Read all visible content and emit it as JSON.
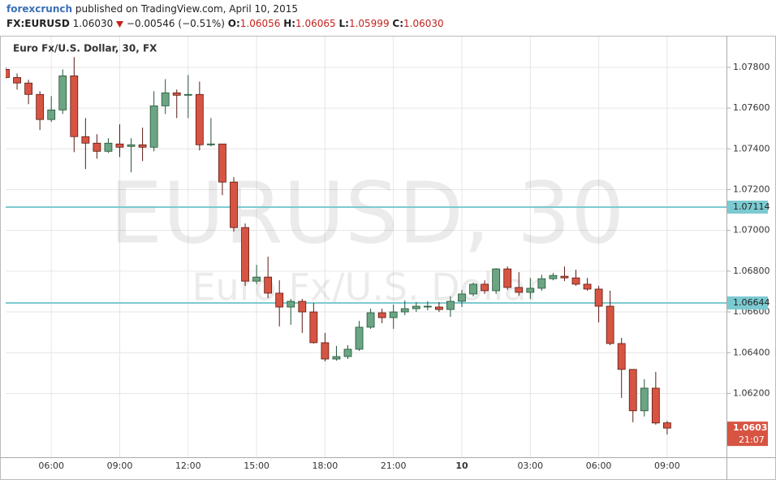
{
  "header": {
    "brand": "forexcrunch",
    "published": "published on TradingView.com, April 10, 2015",
    "symbol": "FX:EURUSD",
    "price": "1.06030",
    "change": "−0.00546 (−0.51%)",
    "ohlc": [
      {
        "label": "O:",
        "value": "1.06056"
      },
      {
        "label": "H:",
        "value": "1.06065"
      },
      {
        "label": "L:",
        "value": "1.05999"
      },
      {
        "label": "C:",
        "value": "1.06030"
      }
    ]
  },
  "chart_data": {
    "type": "candlestick",
    "title": "Euro Fx/U.S. Dollar, 30, FX",
    "watermark": [
      "EURUSD, 30",
      "Euro Fx/U.S. Dollar"
    ],
    "categories": [
      null,
      null,
      null,
      null,
      "06:00",
      null,
      null,
      null,
      null,
      null,
      "09:00",
      null,
      null,
      null,
      null,
      null,
      "12:00",
      null,
      null,
      null,
      null,
      null,
      "15:00",
      null,
      null,
      null,
      null,
      null,
      "18:00",
      null,
      null,
      null,
      null,
      null,
      "21:00",
      null,
      null,
      null,
      null,
      null,
      "10",
      null,
      null,
      null,
      null,
      null,
      "03:00",
      null,
      null,
      null,
      null,
      null,
      "06:00",
      null,
      null,
      null,
      null,
      null,
      "09:00"
    ],
    "open": [
      1.0779,
      1.0775,
      1.07723,
      1.07667,
      1.07544,
      1.07591,
      1.07758,
      1.0746,
      1.07428,
      1.07388,
      1.07424,
      1.07412,
      1.0742,
      1.07408,
      1.07611,
      1.07675,
      1.07663,
      1.07667,
      1.0742,
      1.07424,
      1.07237,
      1.07014,
      1.06751,
      1.06771,
      1.06692,
      1.06624,
      1.06652,
      1.066,
      1.06449,
      1.06369,
      1.06381,
      1.06417,
      1.06525,
      1.06596,
      1.06572,
      1.066,
      1.06616,
      1.06624,
      1.06624,
      1.06612,
      1.06652,
      1.06688,
      1.06736,
      1.06704,
      1.06811,
      1.0672,
      1.06696,
      1.06716,
      1.06763,
      1.06775,
      1.06767,
      1.06736,
      1.06712,
      1.06628,
      1.06445,
      1.06318,
      1.06115,
      1.06226,
      1.06056
    ],
    "high": [
      1.078,
      1.0777,
      1.07739,
      1.07683,
      1.07659,
      1.0779,
      1.0785,
      1.07551,
      1.07472,
      1.07452,
      1.0752,
      1.07452,
      1.07504,
      1.07683,
      1.07742,
      1.07691,
      1.07762,
      1.0773,
      1.07551,
      1.07424,
      1.07261,
      1.07034,
      1.06831,
      1.06871,
      1.06755,
      1.06664,
      1.06664,
      1.06644,
      1.06497,
      1.06433,
      1.06437,
      1.06556,
      1.06616,
      1.06616,
      1.06636,
      1.06656,
      1.06648,
      1.06652,
      1.06648,
      1.06676,
      1.06708,
      1.06744,
      1.06755,
      1.06815,
      1.06823,
      1.06795,
      1.06767,
      1.06783,
      1.06791,
      1.06823,
      1.06807,
      1.06767,
      1.06728,
      1.06704,
      1.06473,
      1.06318,
      1.0627,
      1.06306,
      1.06065
    ],
    "low": [
      1.07745,
      1.07691,
      1.07619,
      1.07492,
      1.07532,
      1.07571,
      1.07384,
      1.07301,
      1.07352,
      1.0738,
      1.0736,
      1.07285,
      1.0734,
      1.07388,
      1.07571,
      1.07551,
      1.07551,
      1.07392,
      1.07412,
      1.07173,
      1.06994,
      1.06728,
      1.06736,
      1.06668,
      1.06529,
      1.06537,
      1.06497,
      1.06445,
      1.06357,
      1.06361,
      1.06369,
      1.06409,
      1.06517,
      1.06545,
      1.06517,
      1.06584,
      1.066,
      1.06608,
      1.066,
      1.06576,
      1.06624,
      1.06676,
      1.06688,
      1.06688,
      1.06708,
      1.0668,
      1.06664,
      1.06704,
      1.06755,
      1.06751,
      1.06728,
      1.06704,
      1.06549,
      1.06437,
      1.06178,
      1.06059,
      1.06087,
      1.06047,
      1.05999
    ],
    "close": [
      1.0775,
      1.07723,
      1.07667,
      1.07544,
      1.07591,
      1.07758,
      1.0746,
      1.07428,
      1.07388,
      1.07428,
      1.07408,
      1.0742,
      1.07408,
      1.07611,
      1.07675,
      1.07663,
      1.07667,
      1.0742,
      1.07424,
      1.07237,
      1.07014,
      1.06751,
      1.06771,
      1.06692,
      1.06624,
      1.06652,
      1.066,
      1.06449,
      1.06369,
      1.06381,
      1.06417,
      1.06525,
      1.06596,
      1.06572,
      1.066,
      1.06616,
      1.06628,
      1.06628,
      1.06612,
      1.06652,
      1.06688,
      1.06736,
      1.06704,
      1.06811,
      1.0672,
      1.06696,
      1.06716,
      1.06763,
      1.06779,
      1.06767,
      1.06736,
      1.06712,
      1.06628,
      1.06445,
      1.06318,
      1.06115,
      1.06226,
      1.06055,
      1.0603
    ],
    "up_color": "#6ba583",
    "up_border": "#225437",
    "down_color": "#d75442",
    "down_border": "#5b1a13",
    "ylim": [
      1.05887,
      1.07951
    ],
    "yticks": [
      {
        "value": 1.062,
        "label": "1.06200"
      },
      {
        "value": 1.064,
        "label": "1.06400"
      },
      {
        "value": 1.066,
        "label": "1.06600"
      },
      {
        "value": 1.068,
        "label": "1.06800"
      },
      {
        "value": 1.07,
        "label": "1.07000"
      },
      {
        "value": 1.072,
        "label": "1.07200"
      },
      {
        "value": 1.074,
        "label": "1.07400"
      },
      {
        "value": 1.076,
        "label": "1.07600"
      },
      {
        "value": 1.078,
        "label": "1.07800"
      }
    ],
    "hlines": [
      {
        "value": 1.07114,
        "color": "#7ccad1"
      },
      {
        "value": 1.06644,
        "color": "#7ccad1"
      }
    ],
    "last_price": {
      "value": 1.0603,
      "label": "1.06030"
    },
    "countdown": "21:07",
    "grid": true
  }
}
